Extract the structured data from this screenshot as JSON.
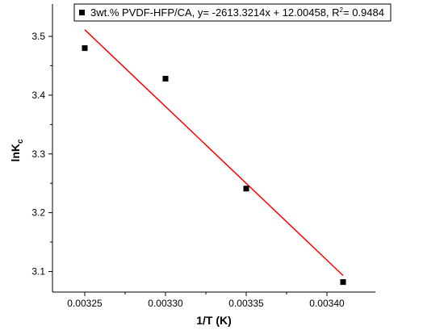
{
  "chart_data": {
    "type": "scatter",
    "xlabel": "1/T (K)",
    "ylabel": "lnK",
    "ylabel_sub": "c",
    "xlim": [
      0.00323,
      0.00343
    ],
    "ylim": [
      3.065,
      3.555
    ],
    "x_ticks": [
      0.00325,
      0.0033,
      0.00335,
      0.0034
    ],
    "x_tick_labels": [
      "0.00325",
      "0.00330",
      "0.00335",
      "0.00340"
    ],
    "y_ticks": [
      3.1,
      3.2,
      3.3,
      3.4,
      3.5
    ],
    "y_tick_labels": [
      "3.1",
      "3.2",
      "3.3",
      "3.4",
      "3.5"
    ],
    "series": [
      {
        "name": "3wt.% PVDF-HFP/CA, y= -2613.3214x + 12.00458, R",
        "name_sup": "2",
        "name_tail": "= 0.9484",
        "points": [
          {
            "x": 0.00325,
            "y": 3.48
          },
          {
            "x": 0.0033,
            "y": 3.428
          },
          {
            "x": 0.00335,
            "y": 3.241
          },
          {
            "x": 0.00341,
            "y": 3.082
          }
        ],
        "marker_color": "#000000"
      }
    ],
    "fit": {
      "slope": -2613.3214,
      "intercept": 12.00458,
      "x_range": [
        0.00325,
        0.00341
      ],
      "color": "#ff0000"
    },
    "legend_position": "top"
  }
}
